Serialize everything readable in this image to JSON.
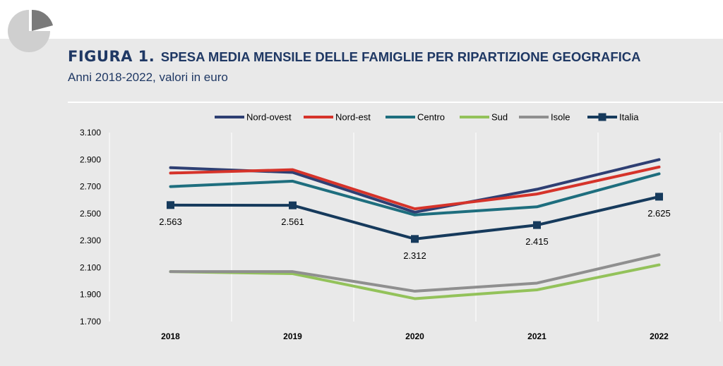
{
  "header": {
    "figure_label": "FIGURA 1.",
    "title": "SPESA MEDIA MENSILE DELLE FAMIGLIE PER RIPARTIZIONE GEOGRAFICA",
    "subtitle": "Anni 2018-2022, valori in euro"
  },
  "logo": {
    "icon": "pie-chart-icon"
  },
  "chart_data": {
    "type": "line",
    "categories": [
      "2018",
      "2019",
      "2020",
      "2021",
      "2022"
    ],
    "ylim": [
      1700,
      3100
    ],
    "yticks": [
      1700,
      1900,
      2100,
      2300,
      2500,
      2700,
      2900,
      3100
    ],
    "ytick_labels": [
      "1.700",
      "1.900",
      "2.100",
      "2.300",
      "2.500",
      "2.700",
      "2.900",
      "3.100"
    ],
    "legend_position": "top",
    "grid": "vertical",
    "series": [
      {
        "name": "Nord-ovest",
        "color": "#2e3f73",
        "values": [
          2840,
          2805,
          2510,
          2680,
          2900
        ]
      },
      {
        "name": "Nord-est",
        "color": "#d6332a",
        "values": [
          2800,
          2825,
          2535,
          2645,
          2845
        ]
      },
      {
        "name": "Centro",
        "color": "#1e6e7e",
        "values": [
          2700,
          2740,
          2490,
          2550,
          2795
        ]
      },
      {
        "name": "Sud",
        "color": "#93c25a",
        "values": [
          2070,
          2055,
          1870,
          1935,
          2120
        ]
      },
      {
        "name": "Isole",
        "color": "#8f8f8f",
        "values": [
          2070,
          2070,
          1925,
          1985,
          2195
        ]
      },
      {
        "name": "Italia",
        "color": "#163a5c",
        "marker": "square",
        "values": [
          2563,
          2561,
          2312,
          2415,
          2625
        ],
        "data_labels": [
          "2.563",
          "2.561",
          "2.312",
          "2.415",
          "2.625"
        ]
      }
    ]
  }
}
